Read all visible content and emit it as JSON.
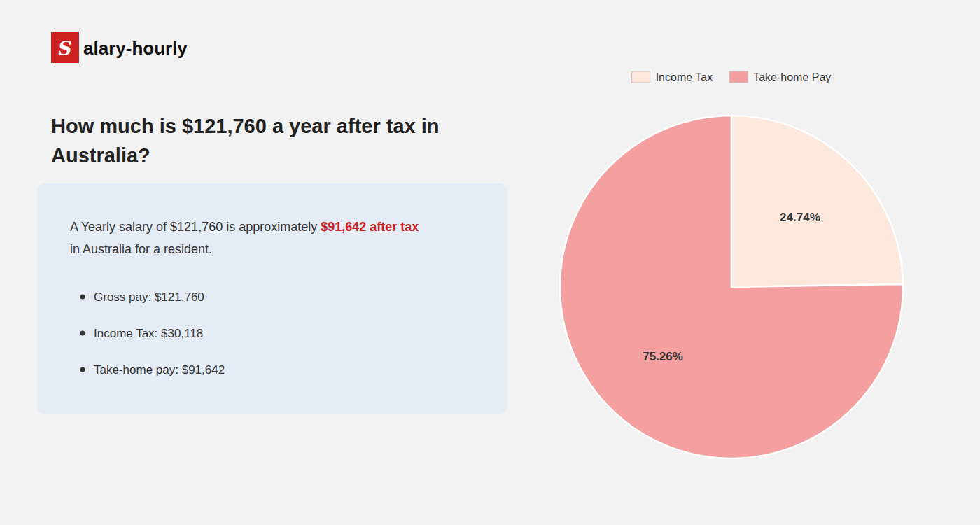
{
  "chart_data": {
    "type": "pie",
    "logo": {
      "mark": "S",
      "text": "alary-hourly",
      "color": "#cc2222"
    },
    "title": "How much is $121,760 a year after tax in Australia?",
    "annotations": [
      {
        "text": "A Yearly salary of $121,760 is approximately "
      },
      {
        "text": "$91,642 after tax",
        "color": "#cc2222"
      },
      {
        "text": "in Australia for a resident."
      }
    ],
    "bullets": [
      "Gross pay: $121,760",
      "Income Tax: $30,118",
      "Take-home pay: $91,642"
    ],
    "categories": [
      "Income Tax",
      "Take-home Pay"
    ],
    "values": [
      24.74,
      75.26
    ],
    "value_labels": [
      "24.74%",
      "75.26%"
    ],
    "colors": [
      "#fce8dc",
      "#f4a0a0"
    ],
    "data_labels": true,
    "legend": "top"
  }
}
